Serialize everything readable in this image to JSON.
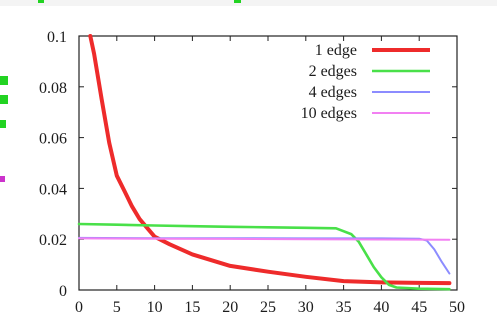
{
  "chart_data": {
    "type": "line",
    "title": "",
    "xlabel": "",
    "ylabel": "",
    "xlim": [
      0,
      50
    ],
    "ylim": [
      0,
      0.1
    ],
    "x_ticks": [
      0,
      5,
      10,
      15,
      20,
      25,
      30,
      35,
      40,
      45,
      50
    ],
    "y_ticks": [
      0,
      0.02,
      0.04,
      0.06,
      0.08,
      0.1
    ],
    "x_tick_labels": [
      "0",
      "5",
      "10",
      "15",
      "20",
      "25",
      "30",
      "35",
      "40",
      "45",
      "50"
    ],
    "y_tick_labels": [
      "0",
      "0.02",
      "0.04",
      "0.06",
      "0.08",
      "0.1"
    ],
    "grid": false,
    "legend_position": "top-right",
    "series": [
      {
        "name": "1 edge",
        "color": "#ee2b2b",
        "x": [
          1.5,
          2,
          3,
          4,
          5,
          6,
          7,
          8,
          10,
          12,
          15,
          20,
          25,
          30,
          35,
          40,
          45,
          49
        ],
        "y": [
          0.1,
          0.093,
          0.075,
          0.058,
          0.045,
          0.039,
          0.033,
          0.028,
          0.021,
          0.018,
          0.014,
          0.0095,
          0.0072,
          0.0052,
          0.0035,
          0.003,
          0.0028,
          0.0027
        ]
      },
      {
        "name": "2 edges",
        "color": "#49e049",
        "x": [
          0,
          5,
          10,
          15,
          20,
          25,
          30,
          34,
          36,
          37,
          38,
          39,
          40,
          41,
          42,
          45,
          49
        ],
        "y": [
          0.026,
          0.0257,
          0.0254,
          0.0251,
          0.0249,
          0.0247,
          0.0245,
          0.0243,
          0.022,
          0.019,
          0.014,
          0.009,
          0.005,
          0.002,
          0.001,
          0.0005,
          0.0003
        ]
      },
      {
        "name": "4 edges",
        "color": "#8c8cff",
        "x": [
          0,
          10,
          20,
          30,
          40,
          45,
          46,
          47,
          48,
          49
        ],
        "y": [
          0.0205,
          0.0204,
          0.0204,
          0.0203,
          0.0203,
          0.0202,
          0.0195,
          0.016,
          0.011,
          0.0065
        ]
      },
      {
        "name": "10 edges",
        "color": "#f280f2",
        "x": [
          0,
          10,
          20,
          30,
          40,
          49
        ],
        "y": [
          0.0203,
          0.0202,
          0.0201,
          0.02,
          0.0199,
          0.0198
        ]
      }
    ]
  },
  "frame_colors": {
    "text": "#1c1c1c",
    "axis": "#222222",
    "fragment_green": "#22d322",
    "fragment_magenta": "#cc33cc"
  }
}
